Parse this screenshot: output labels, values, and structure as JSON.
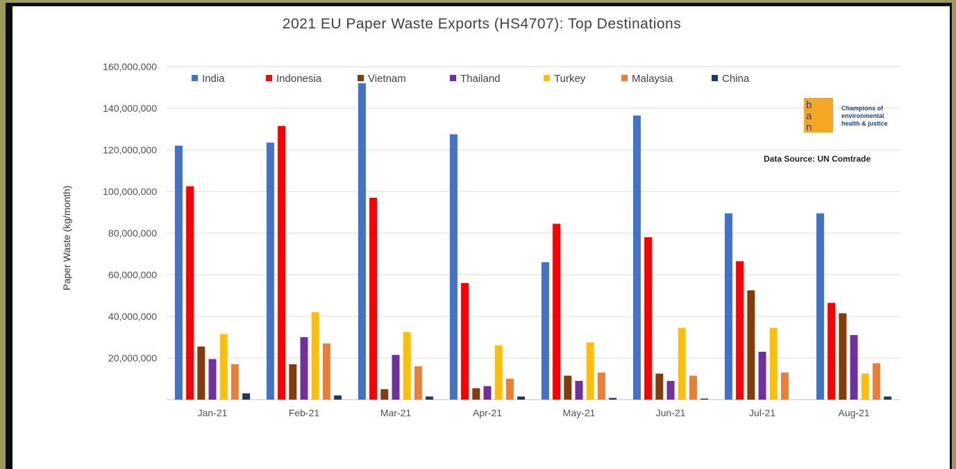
{
  "chart_data": {
    "type": "bar",
    "title": "2021 EU Paper Waste Exports (HS4707): Top Destinations",
    "xlabel": "",
    "ylabel": "Paper Waste (kg/month)",
    "ylim": [
      0,
      160000000
    ],
    "yticks": [
      "",
      "20,000,000",
      "40,000,000",
      "60,000,000",
      "80,000,000",
      "100,000,000",
      "120,000,000",
      "140,000,000",
      "160,000,000"
    ],
    "grid": true,
    "legend_position": "top",
    "categories": [
      "Jan-21",
      "Feb-21",
      "Mar-21",
      "Apr-21",
      "May-21",
      "Jun-21",
      "Jul-21",
      "Aug-21"
    ],
    "series": [
      {
        "name": "India",
        "color": "#4472c4",
        "values": [
          122000000,
          123500000,
          152000000,
          127500000,
          66000000,
          136500000,
          89500000,
          89500000
        ]
      },
      {
        "name": "Indonesia",
        "color": "#ff0000",
        "values": [
          102500000,
          131500000,
          97000000,
          56000000,
          84500000,
          78000000,
          66500000,
          46500000
        ]
      },
      {
        "name": "Vietnam",
        "color": "#843c0c",
        "values": [
          25500000,
          17000000,
          5000000,
          5500000,
          11500000,
          12500000,
          52500000,
          41500000
        ]
      },
      {
        "name": "Thailand",
        "color": "#7030a0",
        "values": [
          19500000,
          30000000,
          21500000,
          6500000,
          9000000,
          9000000,
          23000000,
          31000000
        ]
      },
      {
        "name": "Turkey",
        "color": "#ffc000",
        "values": [
          31500000,
          42000000,
          32500000,
          26000000,
          27500000,
          34500000,
          34500000,
          12500000
        ]
      },
      {
        "name": "Malaysia",
        "color": "#ed7d31",
        "values": [
          17000000,
          27000000,
          16000000,
          10000000,
          13000000,
          11500000,
          13000000,
          17500000
        ]
      },
      {
        "name": "China",
        "color": "#203864",
        "values": [
          3000000,
          2000000,
          1500000,
          1500000,
          800000,
          500000,
          0,
          1500000
        ]
      }
    ]
  },
  "annotations": {
    "logo_letters": [
      "b",
      "a",
      "n"
    ],
    "logo_tagline": [
      "Champions of",
      "environmental",
      "health & justice"
    ],
    "data_source": "Data Source: UN Comtrade"
  },
  "colors": {
    "page_bg": "#9a9a5a",
    "frame": "#0c0c0c",
    "logo_bg": "#f5a623"
  }
}
